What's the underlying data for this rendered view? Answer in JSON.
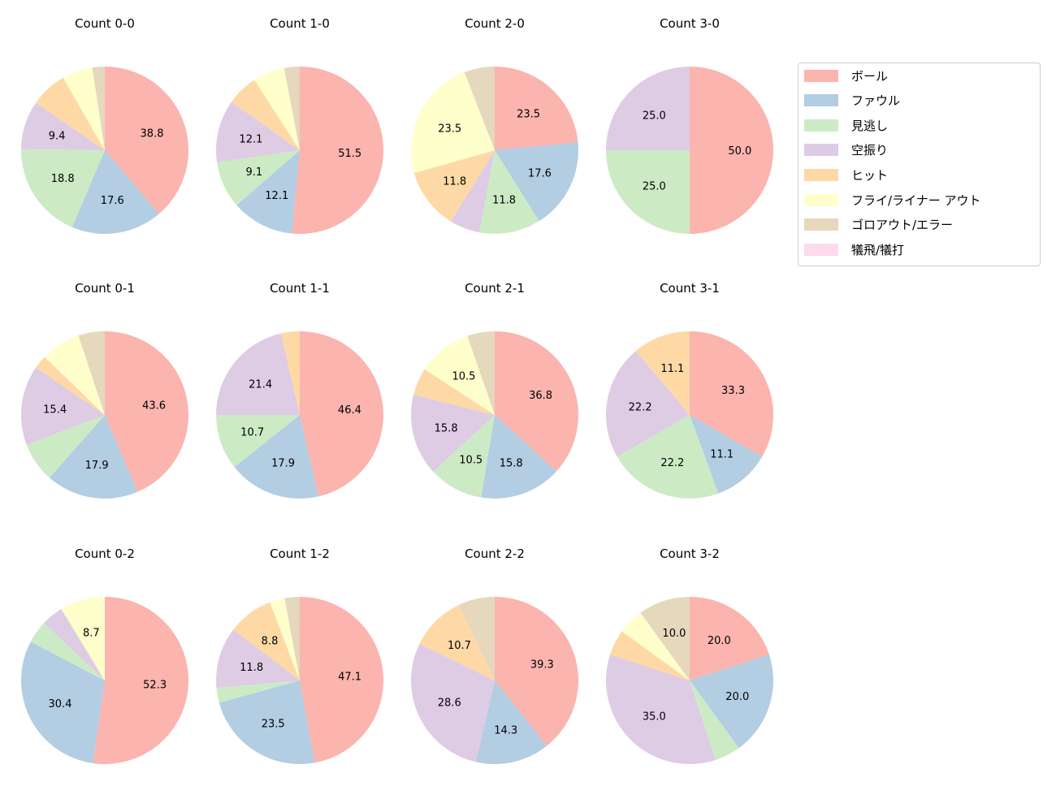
{
  "chart_data": {
    "type": "pie",
    "start_angle": 90,
    "direction": "clockwise",
    "label_threshold_note": "",
    "legend": {
      "placement": "top-right",
      "entries": [
        "ボール",
        "ファウル",
        "見逃し",
        "空振り",
        "ヒット",
        "フライ/ライナー アウト",
        "ゴロアウト/エラー",
        "犠飛/犠打"
      ]
    },
    "colors": [
      "#fbb4ae",
      "#b3cde3",
      "#ccebc5",
      "#decbe4",
      "#fed9a6",
      "#ffffcc",
      "#e5d8bd",
      "#fddaec"
    ],
    "pies": [
      {
        "title": "Count 0-0",
        "values": [
          38.8,
          17.6,
          18.8,
          9.4,
          7.1,
          5.9,
          2.4,
          0
        ]
      },
      {
        "title": "Count 1-0",
        "values": [
          51.5,
          12.1,
          9.1,
          12.1,
          6.1,
          6.1,
          3.0,
          0
        ]
      },
      {
        "title": "Count 2-0",
        "values": [
          23.5,
          17.6,
          11.8,
          5.9,
          11.8,
          23.5,
          5.9,
          0
        ]
      },
      {
        "title": "Count 3-0",
        "values": [
          50.0,
          0,
          25.0,
          25.0,
          0,
          0,
          0,
          0
        ]
      },
      {
        "title": "Count 0-1",
        "values": [
          43.6,
          17.9,
          7.7,
          15.4,
          2.6,
          7.7,
          5.1,
          0
        ]
      },
      {
        "title": "Count 1-1",
        "values": [
          46.4,
          17.9,
          10.7,
          21.4,
          3.6,
          0,
          0,
          0
        ]
      },
      {
        "title": "Count 2-1",
        "values": [
          36.8,
          15.8,
          10.5,
          15.8,
          5.3,
          10.5,
          5.3,
          0
        ]
      },
      {
        "title": "Count 3-1",
        "values": [
          33.3,
          11.1,
          22.2,
          22.2,
          11.1,
          0,
          0,
          0
        ]
      },
      {
        "title": "Count 0-2",
        "values": [
          52.2,
          30.4,
          4.3,
          4.3,
          0,
          8.7,
          0,
          0
        ]
      },
      {
        "title": "Count 1-2",
        "values": [
          47.1,
          23.5,
          2.9,
          11.8,
          8.8,
          2.9,
          2.9,
          0
        ]
      },
      {
        "title": "Count 2-2",
        "values": [
          39.3,
          14.3,
          0,
          28.6,
          10.7,
          0,
          7.1,
          0
        ]
      },
      {
        "title": "Count 3-2",
        "values": [
          20.0,
          20.0,
          5.0,
          35.0,
          5.0,
          5.0,
          10.0,
          0
        ]
      }
    ]
  }
}
